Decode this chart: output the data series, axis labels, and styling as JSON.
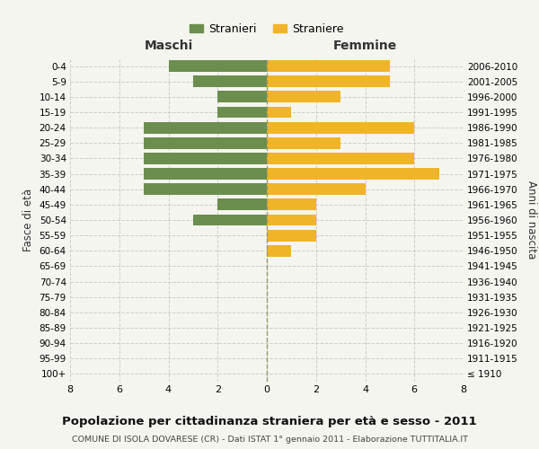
{
  "age_groups": [
    "100+",
    "95-99",
    "90-94",
    "85-89",
    "80-84",
    "75-79",
    "70-74",
    "65-69",
    "60-64",
    "55-59",
    "50-54",
    "45-49",
    "40-44",
    "35-39",
    "30-34",
    "25-29",
    "20-24",
    "15-19",
    "10-14",
    "5-9",
    "0-4"
  ],
  "birth_years": [
    "≤ 1910",
    "1911-1915",
    "1916-1920",
    "1921-1925",
    "1926-1930",
    "1931-1935",
    "1936-1940",
    "1941-1945",
    "1946-1950",
    "1951-1955",
    "1956-1960",
    "1961-1965",
    "1966-1970",
    "1971-1975",
    "1976-1980",
    "1981-1985",
    "1986-1990",
    "1991-1995",
    "1996-2000",
    "2001-2005",
    "2006-2010"
  ],
  "males": [
    0,
    0,
    0,
    0,
    0,
    0,
    0,
    0,
    0,
    0,
    3,
    2,
    5,
    5,
    5,
    5,
    5,
    2,
    2,
    3,
    4
  ],
  "females": [
    0,
    0,
    0,
    0,
    0,
    0,
    0,
    0,
    1,
    2,
    2,
    2,
    4,
    7,
    6,
    3,
    6,
    1,
    3,
    5,
    5
  ],
  "male_color": "#6b8e4e",
  "female_color": "#f0b429",
  "background_color": "#f5f5f0",
  "grid_color": "#cccccc",
  "center_line_color": "#999966",
  "title": "Popolazione per cittadinanza straniera per età e sesso - 2011",
  "subtitle": "COMUNE DI ISOLA DOVARESE (CR) - Dati ISTAT 1° gennaio 2011 - Elaborazione TUTTITALIA.IT",
  "left_label": "Maschi",
  "right_label": "Femmine",
  "y_left_label": "Fasce di età",
  "y_right_label": "Anni di nascita",
  "legend_male": "Stranieri",
  "legend_female": "Straniere",
  "xlim": 8
}
